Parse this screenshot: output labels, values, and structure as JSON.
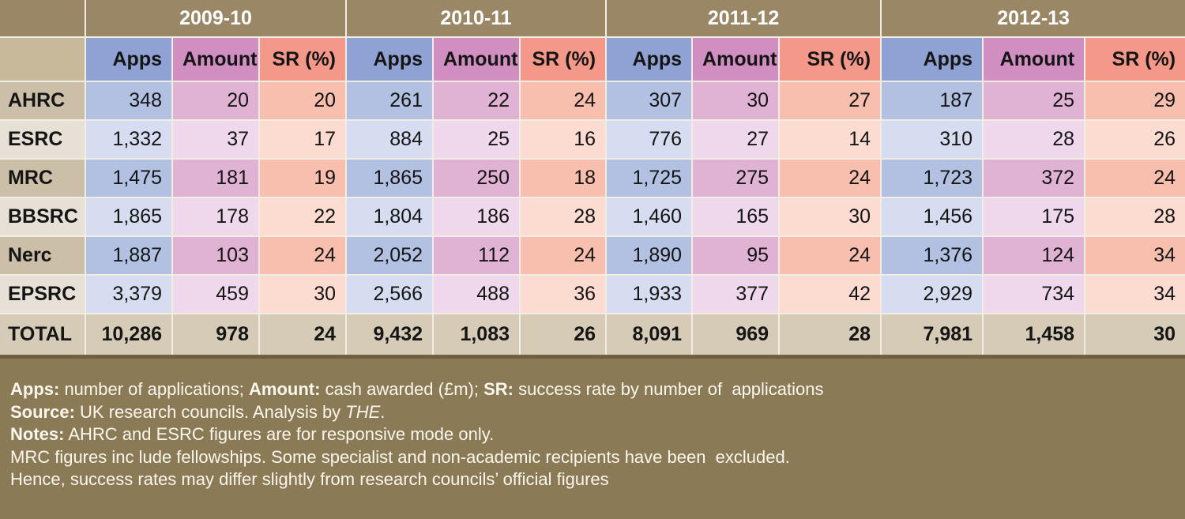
{
  "chart_data": {
    "type": "table",
    "title": "",
    "years": [
      "2009-10",
      "2010-11",
      "2011-12",
      "2012-13"
    ],
    "columns": [
      "Apps",
      "Amount",
      "SR (%)"
    ],
    "rows": [
      {
        "council": "AHRC",
        "values": [
          [
            "348",
            "20",
            "20"
          ],
          [
            "261",
            "22",
            "24"
          ],
          [
            "307",
            "30",
            "27"
          ],
          [
            "187",
            "25",
            "29"
          ]
        ]
      },
      {
        "council": "ESRC",
        "values": [
          [
            "1,332",
            "37",
            "17"
          ],
          [
            "884",
            "25",
            "16"
          ],
          [
            "776",
            "27",
            "14"
          ],
          [
            "310",
            "28",
            "26"
          ]
        ]
      },
      {
        "council": "MRC",
        "values": [
          [
            "1,475",
            "181",
            "19"
          ],
          [
            "1,865",
            "250",
            "18"
          ],
          [
            "1,725",
            "275",
            "24"
          ],
          [
            "1,723",
            "372",
            "24"
          ]
        ]
      },
      {
        "council": "BBSRC",
        "values": [
          [
            "1,865",
            "178",
            "22"
          ],
          [
            "1,804",
            "186",
            "28"
          ],
          [
            "1,460",
            "165",
            "30"
          ],
          [
            "1,456",
            "175",
            "28"
          ]
        ]
      },
      {
        "council": "Nerc",
        "values": [
          [
            "1,887",
            "103",
            "24"
          ],
          [
            "2,052",
            "112",
            "24"
          ],
          [
            "1,890",
            "95",
            "24"
          ],
          [
            "1,376",
            "124",
            "34"
          ]
        ]
      },
      {
        "council": "EPSRC",
        "values": [
          [
            "3,379",
            "459",
            "30"
          ],
          [
            "2,566",
            "488",
            "36"
          ],
          [
            "1,933",
            "377",
            "42"
          ],
          [
            "2,929",
            "734",
            "34"
          ]
        ]
      }
    ],
    "total": {
      "label": "TOTAL",
      "values": [
        [
          "10,286",
          "978",
          "24"
        ],
        [
          "9,432",
          "1,083",
          "26"
        ],
        [
          "8,091",
          "969",
          "28"
        ],
        [
          "7,981",
          "1,458",
          "30"
        ]
      ]
    }
  },
  "colors": {
    "background": "#8a7a55",
    "year_header": "#9a8766",
    "apps_header": "#8fa2d3",
    "amount_header": "#d08fc0",
    "sr_header": "#f4998a"
  },
  "notes": {
    "line1": {
      "b1": "Apps:",
      "t1": " number of applications; ",
      "b2": "Amount:",
      "t2": " cash awarded (£m); ",
      "b3": "SR:",
      "t3": " success rate by number of  applications"
    },
    "line2": {
      "b1": "Source:",
      "t1": " UK research councils. Analysis by ",
      "i1": "THE",
      "t2": "."
    },
    "line3": {
      "b1": "Notes:",
      "t1": " AHRC and ESRC figures are for responsive mode only."
    },
    "line4": "MRC figures inc lude fellowships. Some specialist and non-academic recipients have been  excluded.",
    "line5": "Hence, success rates may differ slightly from research councils’ official figures"
  }
}
